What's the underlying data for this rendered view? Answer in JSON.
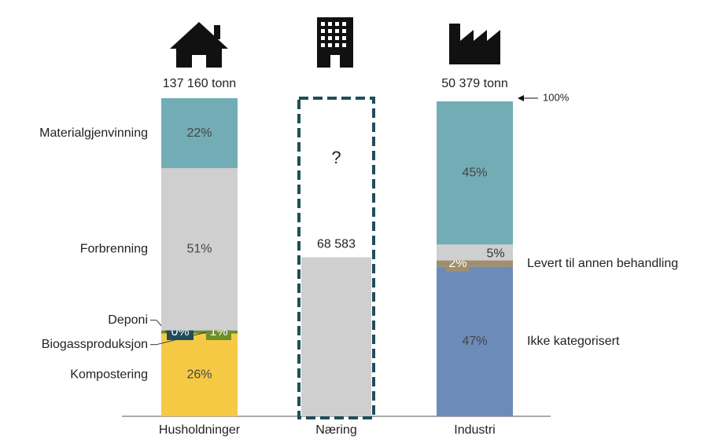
{
  "chart_data": {
    "type": "stacked-bar",
    "categories": [
      "Husholdninger",
      "Næring",
      "Industri"
    ],
    "ylim": [
      0,
      100
    ],
    "series": [
      {
        "name": "Kompostering",
        "color": "#f6c945",
        "values": [
          26,
          null,
          null
        ],
        "value_labels": [
          "26%",
          null,
          null
        ]
      },
      {
        "name": "Biogassproduksjon",
        "color": "#6e8f2a",
        "values": [
          1,
          null,
          null
        ],
        "value_labels": [
          "1%",
          null,
          null
        ]
      },
      {
        "name": "Deponi",
        "color": "#1f4e5a",
        "values": [
          0,
          null,
          null
        ],
        "value_labels": [
          "0%",
          null,
          null
        ]
      },
      {
        "name": "Ikke kategorisert",
        "color": "#6c8bb8",
        "values": [
          null,
          null,
          47
        ],
        "value_labels": [
          null,
          null,
          "47%"
        ]
      },
      {
        "name": "Levert til annen behandling",
        "color": "#a08f6c",
        "values": [
          null,
          null,
          2
        ],
        "value_labels": [
          null,
          null,
          "2%"
        ]
      },
      {
        "name": "Forbrenning",
        "color": "#cfcfcf",
        "values": [
          51,
          null,
          5
        ],
        "value_labels": [
          "51%",
          null,
          "5%"
        ]
      },
      {
        "name": "Materialgjenvinning",
        "color": "#72adb6",
        "values": [
          22,
          null,
          45
        ],
        "value_labels": [
          "22%",
          null,
          "45%"
        ]
      }
    ],
    "naering_known": 50,
    "naering_known_label": "68 583",
    "naering_unknown_label": "?",
    "totals": [
      "137 160 tonn",
      null,
      "50 379 tonn"
    ],
    "top_marker": "100%"
  }
}
